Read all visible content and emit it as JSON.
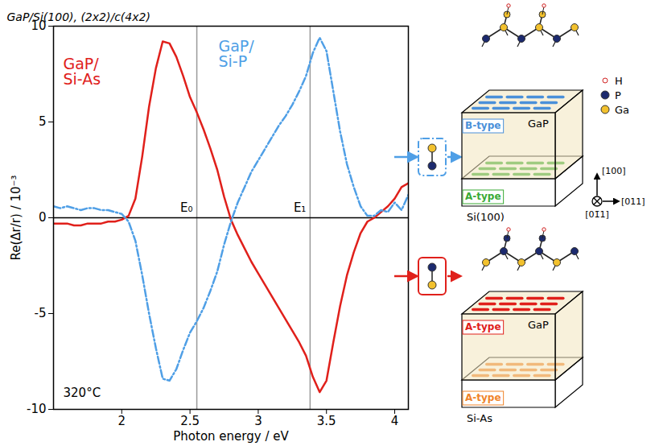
{
  "chart_data": {
    "type": "line",
    "title": "GaP/Si(100), (2x2)/c(4x2)",
    "x_label": "Photon energy / eV",
    "y_label": "Re(Δr/r) / 10⁻³",
    "xlim": [
      1.5,
      4.1
    ],
    "ylim": [
      -10,
      10
    ],
    "xticks": [
      2,
      2.5,
      3,
      3.5,
      4
    ],
    "yticks": [
      -10,
      -5,
      0,
      5,
      10
    ],
    "grid": false,
    "x": [
      1.5,
      1.55,
      1.6,
      1.65,
      1.7,
      1.75,
      1.8,
      1.85,
      1.9,
      1.95,
      2.0,
      2.05,
      2.1,
      2.15,
      2.2,
      2.25,
      2.3,
      2.35,
      2.4,
      2.45,
      2.5,
      2.55,
      2.6,
      2.65,
      2.7,
      2.75,
      2.8,
      2.85,
      2.9,
      2.95,
      3.0,
      3.05,
      3.1,
      3.15,
      3.2,
      3.25,
      3.3,
      3.35,
      3.4,
      3.45,
      3.5,
      3.55,
      3.6,
      3.65,
      3.7,
      3.75,
      3.8,
      3.85,
      3.9,
      3.95,
      4.0,
      4.05,
      4.1
    ],
    "series": [
      {
        "name": "GaP/ Si-As",
        "color": "#e0201b",
        "line_style": "solid",
        "values": [
          -0.3,
          -0.3,
          -0.3,
          -0.4,
          -0.4,
          -0.3,
          -0.3,
          -0.3,
          -0.2,
          -0.2,
          -0.1,
          0.1,
          1.0,
          3.2,
          5.8,
          7.8,
          9.2,
          9.1,
          8.4,
          7.4,
          6.3,
          5.5,
          4.6,
          3.6,
          2.5,
          1.1,
          -0.1,
          -0.9,
          -1.6,
          -2.3,
          -2.9,
          -3.5,
          -4.1,
          -4.7,
          -5.3,
          -5.9,
          -6.5,
          -7.2,
          -8.3,
          -9.1,
          -8.5,
          -6.5,
          -4.6,
          -3.0,
          -1.8,
          -0.8,
          -0.2,
          0.0,
          0.3,
          0.6,
          1.0,
          1.6,
          1.8
        ]
      },
      {
        "name": "GaP/ Si-P",
        "color": "#4f9fe6",
        "line_style": "dashdot",
        "values": [
          0.6,
          0.5,
          0.6,
          0.5,
          0.4,
          0.5,
          0.5,
          0.4,
          0.4,
          0.3,
          0.2,
          -0.2,
          -1.2,
          -3.0,
          -5.0,
          -6.8,
          -8.4,
          -8.5,
          -7.9,
          -6.9,
          -6.0,
          -5.4,
          -4.7,
          -3.8,
          -2.8,
          -1.4,
          -0.2,
          0.8,
          1.6,
          2.4,
          3.0,
          3.6,
          4.2,
          4.8,
          5.3,
          5.9,
          6.6,
          7.4,
          8.6,
          9.4,
          8.7,
          6.6,
          4.5,
          2.8,
          1.6,
          0.6,
          0.1,
          0.1,
          0.4,
          0.3,
          0.8,
          0.4,
          1.2
        ]
      }
    ],
    "reference_lines": [
      {
        "y": 0
      },
      {
        "x": 2.55,
        "label": "E₀"
      },
      {
        "x": 3.38,
        "label": "E₁"
      }
    ],
    "annotations": [
      "320°C"
    ]
  },
  "diagram": {
    "structures": [
      {
        "series": "GaP/ Si-P",
        "dimer": [
          "Ga",
          "P"
        ],
        "surface": {
          "label": "B-type",
          "color": "#4a90d9"
        },
        "film": "GaP",
        "interface": {
          "label": "A-type",
          "color": "#3aaa35"
        },
        "substrate": "Si(100)"
      },
      {
        "series": "GaP/ Si-As",
        "dimer": [
          "P",
          "Ga"
        ],
        "surface": {
          "label": "A-type",
          "color": "#e0201b"
        },
        "film": "GaP",
        "interface": {
          "label": "A-type",
          "color": "#f0842a"
        },
        "substrate": "Si-As"
      }
    ],
    "atoms": [
      {
        "label": "H",
        "color": "#ffffff"
      },
      {
        "label": "P",
        "color": "#1c2a6e"
      },
      {
        "label": "Ga",
        "color": "#f2c12e"
      }
    ],
    "directions": {
      "up": "[100]",
      "right": "[011]",
      "into": "[01̄1]"
    }
  }
}
